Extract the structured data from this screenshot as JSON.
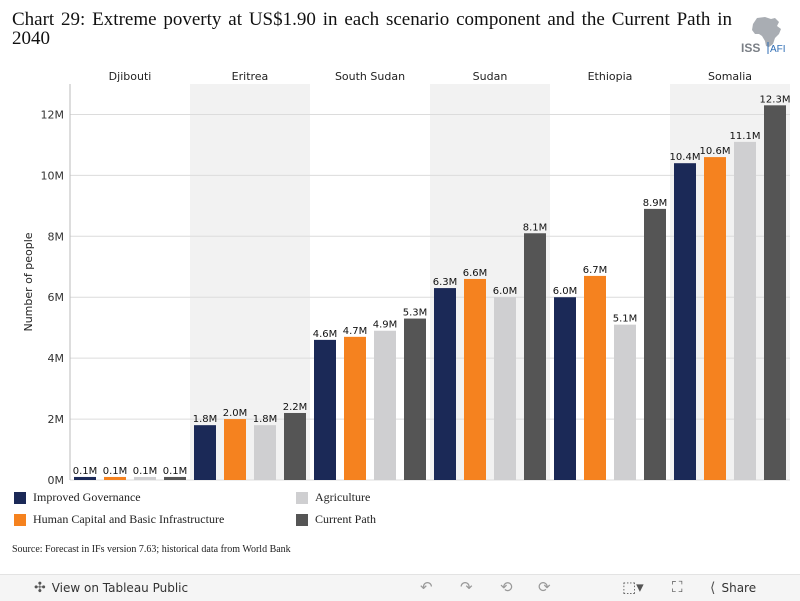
{
  "title": "Chart 29: Extreme poverty at US$1.90 in each scenario component and the Current Path in 2040",
  "logo": {
    "text_main": "ISS",
    "text_sub": "AFI"
  },
  "source": "Source: Forecast in IFs version 7.63; historical data from World Bank",
  "colors": {
    "improved_governance": "#1b2957",
    "human_capital": "#f5821f",
    "agriculture": "#cfcfd1",
    "current_path": "#555555",
    "band": "#f2f2f2",
    "grid": "#dcdcdc"
  },
  "chart_data": {
    "type": "bar",
    "categories": [
      "Djibouti",
      "Eritrea",
      "South Sudan",
      "Sudan",
      "Ethiopia",
      "Somalia"
    ],
    "ylabel": "Number of people",
    "ylim": [
      0,
      13
    ],
    "yticks": [
      0,
      2,
      4,
      6,
      8,
      10,
      12
    ],
    "ytick_labels": [
      "0M",
      "2M",
      "4M",
      "6M",
      "8M",
      "10M",
      "12M"
    ],
    "series": [
      {
        "name": "Improved Governance",
        "values": [
          0.1,
          1.8,
          4.6,
          6.3,
          6.0,
          10.4
        ],
        "labels": [
          "0.1M",
          "1.8M",
          "4.6M",
          "6.3M",
          "6.0M",
          "10.4M"
        ]
      },
      {
        "name": "Human Capital and Basic Infrastructure",
        "values": [
          0.1,
          2.0,
          4.7,
          6.6,
          6.7,
          10.6
        ],
        "labels": [
          "0.1M",
          "2.0M",
          "4.7M",
          "6.6M",
          "6.7M",
          "10.6M"
        ]
      },
      {
        "name": "Agriculture",
        "values": [
          0.1,
          1.8,
          4.9,
          6.0,
          5.1,
          11.1
        ],
        "labels": [
          "0.1M",
          "1.8M",
          "4.9M",
          "6.0M",
          "5.1M",
          "11.1M"
        ]
      },
      {
        "name": "Current Path",
        "values": [
          0.1,
          2.2,
          5.3,
          8.1,
          8.9,
          12.3
        ],
        "labels": [
          "0.1M",
          "2.2M",
          "5.3M",
          "8.1M",
          "8.9M",
          "12.3M"
        ]
      }
    ],
    "grid": true,
    "legend_position": "bottom-left"
  },
  "legend": [
    {
      "label": "Improved Governance",
      "color_key": "improved_governance"
    },
    {
      "label": "Human Capital and Basic Infrastructure",
      "color_key": "human_capital"
    },
    {
      "label": "Agriculture",
      "color_key": "agriculture"
    },
    {
      "label": "Current Path",
      "color_key": "current_path"
    }
  ],
  "toolbar": {
    "view_label": "View on Tableau Public",
    "share_label": "Share"
  }
}
